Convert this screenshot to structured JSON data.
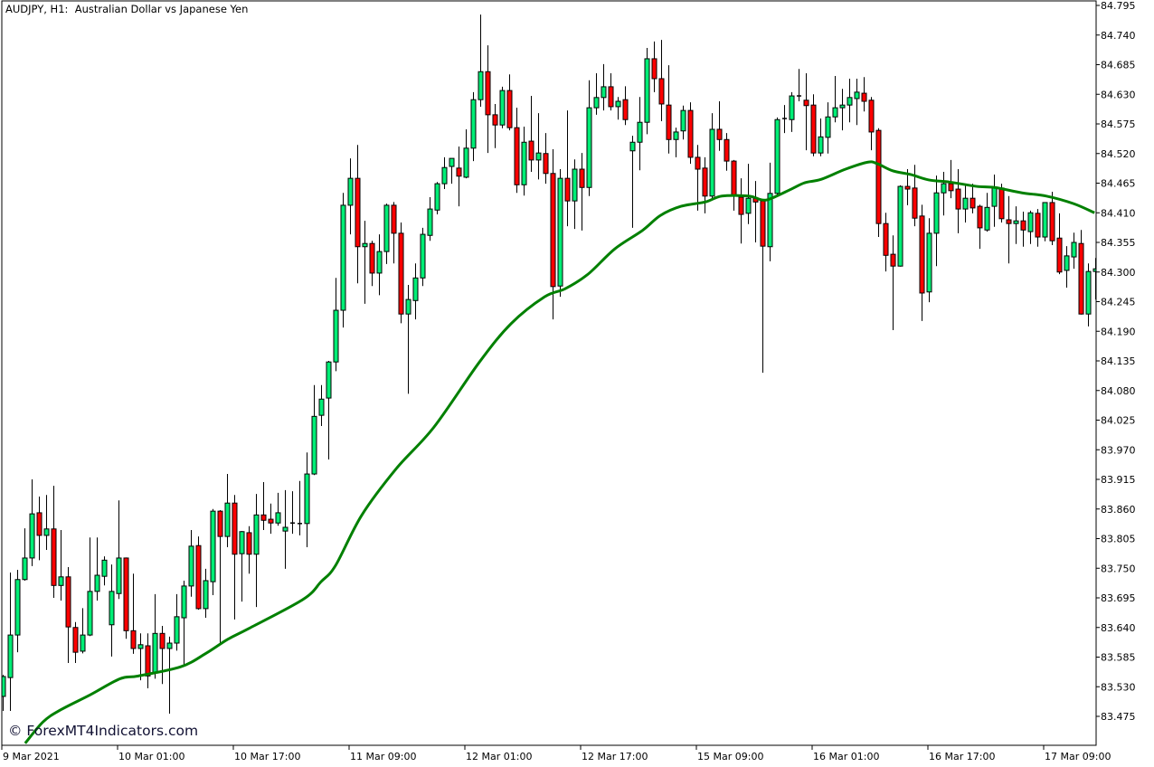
{
  "header": {
    "title": "AUDJPY, H1:  Australian Dollar vs Japanese Yen"
  },
  "watermark": "© ForexMT4Indicators.com",
  "colors": {
    "bull": "#00ee76",
    "bear": "#ff0000",
    "outline": "#000000",
    "ma_line": "#008000",
    "background": "#ffffff",
    "axis": "#000000"
  },
  "chart_data": {
    "type": "candlestick",
    "symbol": "AUDJPY",
    "timeframe": "H1",
    "ylim": [
      83.423,
      84.798
    ],
    "grid": false,
    "y_ticks": [
      "84.795",
      "84.740",
      "84.685",
      "84.630",
      "84.575",
      "84.520",
      "84.465",
      "84.410",
      "84.355",
      "84.300",
      "84.245",
      "84.190",
      "84.135",
      "84.080",
      "84.025",
      "83.970",
      "83.915",
      "83.860",
      "83.805",
      "83.750",
      "83.695",
      "83.640",
      "83.585",
      "83.530",
      "83.475"
    ],
    "x_ticks": [
      {
        "label": "9 Mar 2021",
        "bar": 0
      },
      {
        "label": "10 Mar 01:00",
        "bar": 16
      },
      {
        "label": "10 Mar 17:00",
        "bar": 32
      },
      {
        "label": "11 Mar 09:00",
        "bar": 48
      },
      {
        "label": "12 Mar 01:00",
        "bar": 64
      },
      {
        "label": "12 Mar 17:00",
        "bar": 80
      },
      {
        "label": "15 Mar 09:00",
        "bar": 96
      },
      {
        "label": "16 Mar 01:00",
        "bar": 112
      },
      {
        "label": "16 Mar 17:00",
        "bar": 128
      },
      {
        "label": "17 Mar 09:00",
        "bar": 144
      }
    ],
    "ohlc_fields": [
      "open",
      "high",
      "low",
      "close"
    ],
    "candles": [
      [
        83.512,
        83.552,
        83.485,
        83.549
      ],
      [
        83.547,
        83.742,
        83.485,
        83.626
      ],
      [
        83.626,
        83.747,
        83.594,
        83.729
      ],
      [
        83.729,
        83.824,
        83.727,
        83.769
      ],
      [
        83.769,
        83.915,
        83.754,
        83.851
      ],
      [
        83.853,
        83.883,
        83.765,
        83.811
      ],
      [
        83.811,
        83.886,
        83.784,
        83.823
      ],
      [
        83.823,
        83.903,
        83.695,
        83.718
      ],
      [
        83.718,
        83.821,
        83.69,
        83.734
      ],
      [
        83.734,
        83.752,
        83.574,
        83.641
      ],
      [
        83.64,
        83.65,
        83.574,
        83.594
      ],
      [
        83.596,
        83.676,
        83.592,
        83.626
      ],
      [
        83.626,
        83.807,
        83.624,
        83.707
      ],
      [
        83.707,
        83.807,
        83.69,
        83.737
      ],
      [
        83.735,
        83.772,
        83.718,
        83.765
      ],
      [
        83.645,
        83.757,
        83.586,
        83.707
      ],
      [
        83.703,
        83.876,
        83.693,
        83.769
      ],
      [
        83.769,
        83.77,
        83.619,
        83.634
      ],
      [
        83.634,
        83.74,
        83.591,
        83.601
      ],
      [
        83.601,
        83.629,
        83.542,
        83.608
      ],
      [
        83.606,
        83.629,
        83.527,
        83.55
      ],
      [
        83.556,
        83.702,
        83.545,
        83.629
      ],
      [
        83.629,
        83.643,
        83.535,
        83.601
      ],
      [
        83.601,
        83.623,
        83.48,
        83.611
      ],
      [
        83.611,
        83.702,
        83.597,
        83.66
      ],
      [
        83.658,
        83.727,
        83.571,
        83.717
      ],
      [
        83.717,
        83.821,
        83.697,
        83.791
      ],
      [
        83.792,
        83.809,
        83.673,
        83.675
      ],
      [
        83.675,
        83.749,
        83.658,
        83.727
      ],
      [
        83.725,
        83.86,
        83.7,
        83.856
      ],
      [
        83.856,
        83.858,
        83.608,
        83.809
      ],
      [
        83.809,
        83.925,
        83.789,
        83.871
      ],
      [
        83.871,
        83.886,
        83.655,
        83.776
      ],
      [
        83.777,
        83.819,
        83.688,
        83.818
      ],
      [
        83.816,
        83.828,
        83.74,
        83.776
      ],
      [
        83.776,
        83.888,
        83.678,
        83.849
      ],
      [
        83.849,
        83.91,
        83.821,
        83.839
      ],
      [
        83.841,
        83.87,
        83.814,
        83.834
      ],
      [
        83.834,
        83.89,
        83.829,
        83.853
      ],
      [
        83.819,
        83.895,
        83.749,
        83.826
      ],
      [
        83.834,
        83.893,
        83.814,
        83.834
      ],
      [
        83.833,
        83.912,
        83.811,
        83.833
      ],
      [
        83.833,
        83.965,
        83.789,
        83.925
      ],
      [
        83.925,
        84.09,
        83.923,
        84.032
      ],
      [
        84.034,
        84.09,
        84.014,
        84.064
      ],
      [
        84.066,
        84.135,
        83.952,
        84.133
      ],
      [
        84.133,
        84.289,
        84.116,
        84.229
      ],
      [
        84.229,
        84.447,
        84.197,
        84.424
      ],
      [
        84.424,
        84.511,
        84.37,
        84.474
      ],
      [
        84.474,
        84.536,
        84.279,
        84.347
      ],
      [
        84.347,
        84.395,
        84.241,
        84.353
      ],
      [
        84.353,
        84.358,
        84.274,
        84.298
      ],
      [
        84.298,
        84.37,
        84.257,
        84.338
      ],
      [
        84.338,
        84.427,
        84.315,
        84.424
      ],
      [
        84.424,
        84.43,
        84.316,
        84.372
      ],
      [
        84.372,
        84.392,
        84.205,
        84.222
      ],
      [
        84.222,
        84.276,
        84.074,
        84.249
      ],
      [
        84.247,
        84.316,
        84.212,
        84.289
      ],
      [
        84.289,
        84.382,
        84.274,
        84.37
      ],
      [
        84.368,
        84.439,
        84.358,
        84.417
      ],
      [
        84.415,
        84.467,
        84.407,
        84.464
      ],
      [
        84.464,
        84.513,
        84.454,
        84.494
      ],
      [
        84.496,
        84.511,
        84.464,
        84.511
      ],
      [
        84.493,
        84.533,
        84.422,
        84.478
      ],
      [
        84.476,
        84.565,
        84.474,
        84.53
      ],
      [
        84.53,
        84.634,
        84.506,
        84.62
      ],
      [
        84.62,
        84.778,
        84.607,
        84.672
      ],
      [
        84.672,
        84.721,
        84.521,
        84.592
      ],
      [
        84.592,
        84.612,
        84.53,
        84.573
      ],
      [
        84.573,
        84.644,
        84.567,
        84.637
      ],
      [
        84.637,
        84.667,
        84.563,
        84.568
      ],
      [
        84.568,
        84.605,
        84.447,
        84.462
      ],
      [
        84.462,
        84.57,
        84.442,
        84.541
      ],
      [
        84.543,
        84.627,
        84.486,
        84.508
      ],
      [
        84.508,
        84.595,
        84.472,
        84.521
      ],
      [
        84.52,
        84.558,
        84.464,
        84.483
      ],
      [
        84.483,
        84.528,
        84.212,
        84.273
      ],
      [
        84.274,
        84.491,
        84.254,
        84.474
      ],
      [
        84.474,
        84.6,
        84.385,
        84.432
      ],
      [
        84.432,
        84.509,
        84.38,
        84.491
      ],
      [
        84.491,
        84.521,
        84.377,
        84.457
      ],
      [
        84.457,
        84.656,
        84.441,
        84.605
      ],
      [
        84.605,
        84.669,
        84.592,
        84.624
      ],
      [
        84.624,
        84.686,
        84.6,
        84.644
      ],
      [
        84.644,
        84.669,
        84.6,
        84.607
      ],
      [
        84.607,
        84.625,
        84.583,
        84.617
      ],
      [
        84.62,
        84.645,
        84.573,
        84.583
      ],
      [
        84.525,
        84.553,
        84.382,
        84.541
      ],
      [
        84.541,
        84.625,
        84.489,
        84.578
      ],
      [
        84.578,
        84.716,
        84.556,
        84.696
      ],
      [
        84.696,
        84.728,
        84.634,
        84.659
      ],
      [
        84.659,
        84.731,
        84.58,
        84.612
      ],
      [
        84.61,
        84.684,
        84.52,
        84.546
      ],
      [
        84.546,
        84.568,
        84.513,
        84.56
      ],
      [
        84.562,
        84.609,
        84.546,
        84.6
      ],
      [
        84.6,
        84.615,
        84.501,
        84.513
      ],
      [
        84.513,
        84.536,
        84.414,
        84.491
      ],
      [
        84.493,
        84.513,
        84.409,
        84.441
      ],
      [
        84.441,
        84.595,
        84.436,
        84.565
      ],
      [
        84.565,
        84.617,
        84.525,
        84.546
      ],
      [
        84.546,
        84.558,
        84.488,
        84.506
      ],
      [
        84.506,
        84.508,
        84.414,
        84.441
      ],
      [
        84.439,
        84.474,
        84.353,
        84.407
      ],
      [
        84.409,
        84.501,
        84.389,
        84.437
      ],
      [
        84.437,
        84.469,
        84.355,
        84.43
      ],
      [
        84.432,
        84.432,
        84.113,
        84.348
      ],
      [
        84.347,
        84.503,
        84.32,
        84.446
      ],
      [
        84.446,
        84.587,
        84.441,
        84.583
      ],
      [
        84.585,
        84.61,
        84.558,
        84.585
      ],
      [
        84.583,
        84.634,
        84.56,
        84.627
      ],
      [
        84.627,
        84.677,
        84.617,
        84.627
      ],
      [
        84.619,
        84.669,
        84.526,
        84.609
      ],
      [
        84.61,
        84.63,
        84.515,
        84.521
      ],
      [
        84.521,
        84.585,
        84.515,
        84.551
      ],
      [
        84.55,
        84.615,
        84.52,
        84.588
      ],
      [
        84.588,
        84.664,
        84.578,
        84.605
      ],
      [
        84.605,
        84.64,
        84.563,
        84.61
      ],
      [
        84.61,
        84.659,
        84.578,
        84.624
      ],
      [
        84.622,
        84.659,
        84.573,
        84.634
      ],
      [
        84.632,
        84.662,
        84.598,
        84.617
      ],
      [
        84.619,
        84.625,
        84.526,
        84.56
      ],
      [
        84.563,
        84.567,
        84.365,
        84.39
      ],
      [
        84.39,
        84.41,
        84.301,
        84.331
      ],
      [
        84.333,
        84.368,
        84.192,
        84.311
      ],
      [
        84.311,
        84.461,
        84.31,
        84.459
      ],
      [
        84.459,
        84.491,
        84.424,
        84.454
      ],
      [
        84.456,
        84.499,
        84.385,
        84.4
      ],
      [
        84.404,
        84.425,
        84.209,
        84.261
      ],
      [
        84.263,
        84.4,
        84.244,
        84.372
      ],
      [
        84.372,
        84.479,
        84.311,
        84.447
      ],
      [
        84.447,
        84.486,
        84.405,
        84.464
      ],
      [
        84.464,
        84.508,
        84.437,
        84.451
      ],
      [
        84.454,
        84.491,
        84.372,
        84.417
      ],
      [
        84.417,
        84.461,
        84.392,
        84.437
      ],
      [
        84.437,
        84.464,
        84.409,
        84.419
      ],
      [
        84.422,
        84.425,
        84.343,
        84.382
      ],
      [
        84.378,
        84.447,
        84.375,
        84.42
      ],
      [
        84.422,
        84.481,
        84.384,
        84.456
      ],
      [
        84.456,
        84.464,
        84.392,
        84.399
      ],
      [
        84.397,
        84.441,
        84.316,
        84.39
      ],
      [
        84.39,
        84.422,
        84.352,
        84.395
      ],
      [
        84.395,
        84.412,
        84.347,
        84.378
      ],
      [
        84.375,
        84.414,
        84.352,
        84.41
      ],
      [
        84.409,
        84.417,
        84.347,
        84.365
      ],
      [
        84.365,
        84.429,
        84.357,
        84.429
      ],
      [
        84.429,
        84.449,
        84.35,
        84.358
      ],
      [
        84.363,
        84.409,
        84.296,
        84.3
      ],
      [
        84.303,
        84.348,
        84.271,
        84.33
      ],
      [
        84.328,
        84.373,
        84.306,
        84.355
      ],
      [
        84.353,
        84.378,
        84.221,
        84.222
      ],
      [
        84.222,
        84.316,
        84.199,
        84.301
      ],
      [
        84.301,
        84.326,
        84.249,
        84.306
      ]
    ],
    "moving_average": [
      [
        3.1,
        83.425
      ],
      [
        5.6,
        83.465
      ],
      [
        8,
        83.487
      ],
      [
        12.1,
        83.515
      ],
      [
        16.25,
        83.545
      ],
      [
        18.75,
        83.55
      ],
      [
        24.6,
        83.567
      ],
      [
        28.1,
        83.592
      ],
      [
        31.1,
        83.618
      ],
      [
        34,
        83.638
      ],
      [
        41.5,
        83.692
      ],
      [
        44,
        83.725
      ],
      [
        46,
        83.755
      ],
      [
        49.6,
        83.848
      ],
      [
        54.4,
        83.935
      ],
      [
        59.6,
        84.012
      ],
      [
        65.9,
        84.133
      ],
      [
        70.25,
        84.204
      ],
      [
        74.9,
        84.254
      ],
      [
        77.75,
        84.269
      ],
      [
        80.9,
        84.296
      ],
      [
        84.6,
        84.343
      ],
      [
        88.4,
        84.377
      ],
      [
        90.9,
        84.405
      ],
      [
        93.75,
        84.422
      ],
      [
        97.1,
        84.43
      ],
      [
        99.4,
        84.441
      ],
      [
        103.1,
        84.441
      ],
      [
        104.9,
        84.434
      ],
      [
        106.1,
        84.436
      ],
      [
        109,
        84.454
      ],
      [
        110.9,
        84.466
      ],
      [
        113.1,
        84.472
      ],
      [
        116.5,
        84.491
      ],
      [
        119.6,
        84.504
      ],
      [
        120.9,
        84.501
      ],
      [
        123,
        84.488
      ],
      [
        125.5,
        84.481
      ],
      [
        128,
        84.471
      ],
      [
        130.9,
        84.467
      ],
      [
        134.6,
        84.459
      ],
      [
        137.1,
        84.457
      ],
      [
        140.9,
        84.447
      ],
      [
        144.25,
        84.441
      ],
      [
        148,
        84.427
      ],
      [
        150.9,
        84.41
      ]
    ]
  }
}
